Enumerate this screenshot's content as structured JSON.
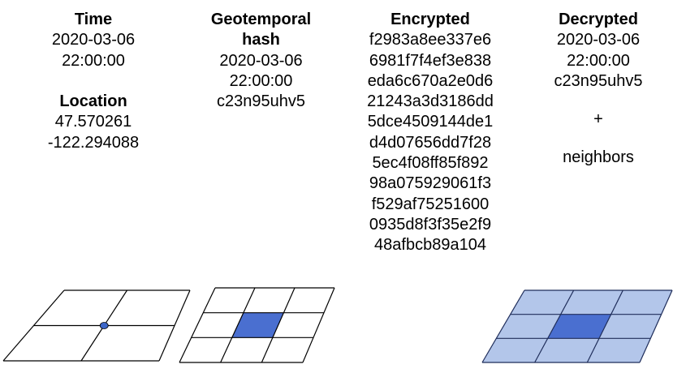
{
  "time": {
    "header": "Time",
    "date": "2020-03-06",
    "clock": "22:00:00"
  },
  "location": {
    "header": "Location",
    "lat": "47.570261",
    "lon": "-122.294088"
  },
  "geotemporal": {
    "header_line1": "Geotemporal",
    "header_line2": "hash",
    "date": "2020-03-06",
    "clock": "22:00:00",
    "hash": "c23n95uhv5"
  },
  "encrypted": {
    "header": "Encrypted",
    "lines": [
      "f2983a8ee337e6",
      "6981f7f4ef3e838",
      "eda6c670a2e0d6",
      "21243a3d3186dd",
      "5dce4509144de1",
      "d4d07656dd7f28",
      "5ec4f08ff85f892",
      "98a075929061f3",
      "f529af75251600",
      "0935d8f3f35e2f9",
      "48afbcb89a104"
    ]
  },
  "decrypted": {
    "header": "Decrypted",
    "date": "2020-03-06",
    "clock": "22:00:00",
    "hash": "c23n95uhv5",
    "plus": "+",
    "neighbors": "neighbors"
  },
  "colors": {
    "highlight": "#4a6fd0",
    "neighbor": "#b3c6ea",
    "point": "#3c66c8",
    "stroke": "#000000",
    "dark_stroke": "#1f2d5a"
  },
  "grids": [
    {
      "name": "location-point-grid",
      "rows": 2,
      "cols": 2,
      "highlight": "point"
    },
    {
      "name": "hash-cell-grid",
      "rows": 3,
      "cols": 3,
      "highlight": "center"
    },
    {
      "name": "neighbors-grid",
      "rows": 3,
      "cols": 3,
      "highlight": "center-with-neighbors"
    }
  ]
}
